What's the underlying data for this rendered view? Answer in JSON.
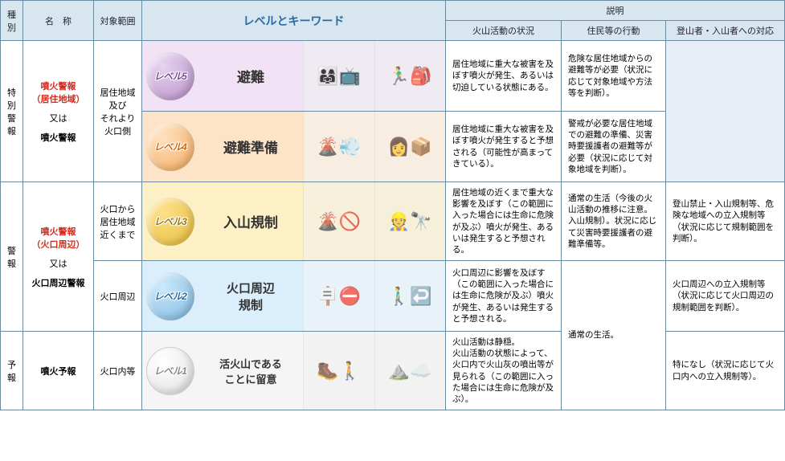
{
  "headers": {
    "category": "種別",
    "name": "名　称",
    "range": "対象範囲",
    "level_keyword": "レベルとキーワード",
    "description": "説明",
    "sub1": "火山活動の状況",
    "sub2": "住民等の行動",
    "sub3": "登山者・入山者への対応"
  },
  "categories": {
    "special": "特別\n警報",
    "warning": "警報",
    "forecast": "予報"
  },
  "names": {
    "n5_main": "噴火警報\n（居住地域）",
    "n5_or": "又は",
    "n5_sub": "噴火警報",
    "n3_main": "噴火警報\n（火口周辺）",
    "n3_or": "又は",
    "n3_sub": "火口周辺警報",
    "n1": "噴火予報"
  },
  "ranges": {
    "r5": "居住地域\n及び\nそれより\n火口側",
    "r3": "火口から\n居住地域\n近くまで",
    "r2": "火口周辺",
    "r1": "火口内等"
  },
  "levels": {
    "l5": "レベル5",
    "l4": "レベル4",
    "l3": "レベル3",
    "l2": "レベル2",
    "l1": "レベル1"
  },
  "keywords": {
    "k5": "避難",
    "k4": "避難準備",
    "k3": "入山規制",
    "k2": "火口周辺\n規制",
    "k1": "活火山である\nことに留意"
  },
  "desc1": {
    "d5": "居住地域に重大な被害を及ぼす噴火が発生、あるいは切迫している状態にある。",
    "d4": "居住地域に重大な被害を及ぼす噴火が発生すると予想される（可能性が高まってきている）。",
    "d3": "居住地域の近くまで重大な影響を及ぼす（この範囲に入った場合には生命に危険が及ぶ）噴火が発生、あるいは発生すると予想される。",
    "d2": "火口周辺に影響を及ぼす（この範囲に入った場合には生命に危険が及ぶ）噴火が発生、あるいは発生すると予想される。",
    "d1": "火山活動は静穏。\n火山活動の状態によって、火口内で火山灰の噴出等が見られる（この範囲に入った場合には生命に危険が及ぶ）。"
  },
  "desc2": {
    "d5": "危険な居住地域からの避難等が必要（状況に応じて対象地域や方法等を判断）。",
    "d4": "警戒が必要な居住地域での避難の準備、災害時要援護者の避難等が必要（状況に応じて対象地域を判断）。",
    "d3": "通常の生活（今後の火山活動の推移に注意。入山規制）。状況に応じて災害時要援護者の避難準備等。",
    "d21": "通常の生活。"
  },
  "desc3": {
    "d3": "登山禁止・入山規制等、危険な地域への立入規制等（状況に応じて規制範囲を判断）。",
    "d2": "火口周辺への立入規制等（状況に応じて火口周辺の規制範囲を判断）。",
    "d1": "特になし（状況に応じて火口内への立入規制等）。"
  }
}
